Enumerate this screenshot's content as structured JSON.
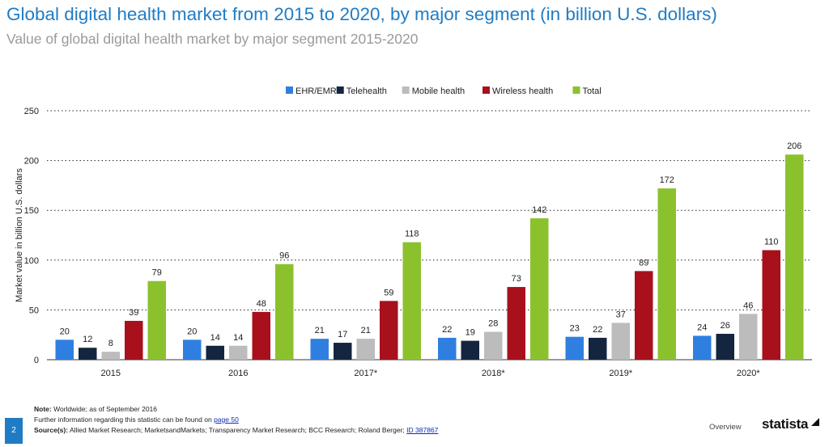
{
  "header": {
    "title": "Global digital health market from 2015 to 2020, by major segment (in billion U.S. dollars)",
    "subtitle": "Value of global digital health market by major segment 2015-2020"
  },
  "chart_data": {
    "type": "bar",
    "categories": [
      "2015",
      "2016",
      "2017*",
      "2018*",
      "2019*",
      "2020*"
    ],
    "series": [
      {
        "name": "EHR/EMR",
        "color": "#2f7fe0",
        "values": [
          20,
          20,
          21,
          22,
          23,
          24
        ]
      },
      {
        "name": "Telehealth",
        "color": "#14253f",
        "values": [
          12,
          14,
          17,
          19,
          22,
          26
        ]
      },
      {
        "name": "Mobile health",
        "color": "#bcbcbc",
        "values": [
          8,
          14,
          21,
          28,
          37,
          46
        ]
      },
      {
        "name": "Wireless health",
        "color": "#a8101c",
        "values": [
          39,
          48,
          59,
          73,
          89,
          110
        ]
      },
      {
        "name": "Total",
        "color": "#8cc12e",
        "values": [
          79,
          96,
          118,
          142,
          172,
          206
        ]
      }
    ],
    "ylabel": "Market value in billion U.S. dollars",
    "xlabel": "",
    "ylim": [
      0,
      250
    ],
    "yticks": [
      0,
      50,
      100,
      150,
      200,
      250
    ],
    "grid": true,
    "legend": "top-center"
  },
  "notes": {
    "note_label": "Note:",
    "note_text": "Worldwide; as of September 2016",
    "further_text": "Further information regarding this statistic can be found on",
    "further_link": "page 50",
    "source_label": "Source(s):",
    "source_text": "Allied Market Research; MarketsandMarkets; Transparency Market Research; BCC Research; Roland Berger;",
    "source_id": "ID 387867"
  },
  "footer": {
    "page_number": "2",
    "overview_label": "Overview",
    "logo_text": "statista"
  }
}
